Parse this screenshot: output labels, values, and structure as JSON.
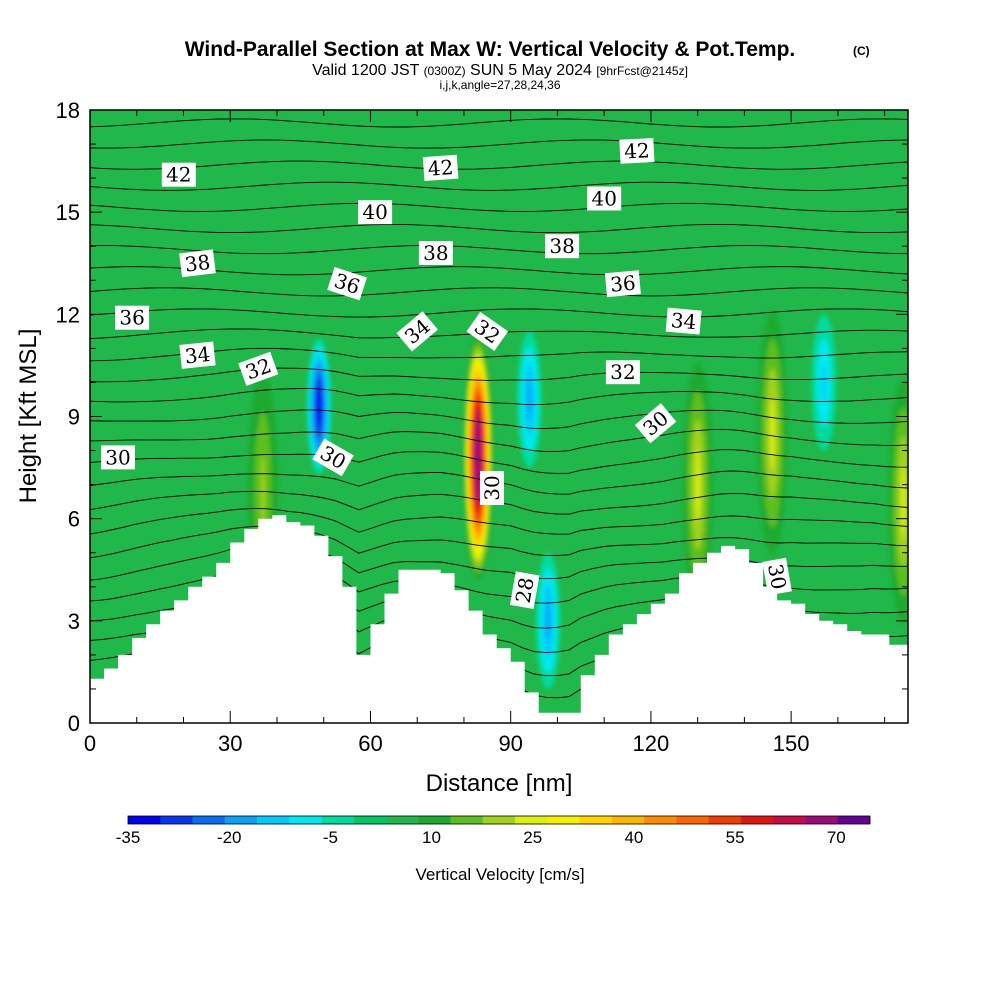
{
  "header": {
    "title": "Wind-Parallel Section at Max W: Vertical Velocity & Pot.Temp.",
    "title_tag": "(C)",
    "valid_prefix": "Valid 1200 JST",
    "valid_utc": "(0300Z)",
    "valid_date": "SUN 5 May 2024",
    "valid_fcst": "[9hrFcst@2145z]",
    "indices": "i,j,k,angle=27,28,24,36"
  },
  "chart_data": {
    "type": "heatmap",
    "title": "Wind-Parallel Section at Max W: Vertical Velocity & Pot.Temp.",
    "xlabel": "Distance [nm]",
    "ylabel": "Height [Kft MSL]",
    "xlim": [
      0,
      175
    ],
    "ylim": [
      0,
      18
    ],
    "x_ticks": [
      "0",
      "30",
      "60",
      "90",
      "120",
      "150"
    ],
    "x_tick_values": [
      0,
      30,
      60,
      90,
      120,
      150
    ],
    "y_ticks": [
      "0",
      "3",
      "6",
      "9",
      "12",
      "15",
      "18"
    ],
    "y_tick_values": [
      0,
      3,
      6,
      9,
      12,
      15,
      18
    ],
    "background_color": "#20b84a",
    "terrain_profile": {
      "x": [
        0,
        3,
        6,
        9,
        12,
        15,
        18,
        21,
        24,
        27,
        30,
        33,
        36,
        39,
        42,
        45,
        48,
        51,
        54,
        57,
        60,
        63,
        66,
        69,
        72,
        75,
        78,
        81,
        84,
        87,
        90,
        93,
        96,
        99,
        102,
        105,
        108,
        111,
        114,
        117,
        120,
        123,
        126,
        129,
        132,
        135,
        138,
        141,
        144,
        147,
        150,
        153,
        156,
        159,
        162,
        165,
        168,
        171,
        175
      ],
      "height": [
        1.3,
        1.6,
        2.0,
        2.5,
        2.9,
        3.3,
        3.6,
        4.0,
        4.3,
        4.7,
        5.3,
        5.7,
        6.0,
        6.1,
        5.9,
        5.8,
        5.5,
        4.9,
        4.0,
        2.0,
        2.9,
        3.8,
        4.5,
        4.5,
        4.5,
        4.4,
        3.9,
        3.3,
        2.6,
        2.2,
        1.8,
        0.9,
        0.3,
        0.3,
        0.3,
        1.4,
        2.0,
        2.6,
        2.9,
        3.2,
        3.5,
        3.8,
        4.4,
        4.7,
        5.0,
        5.2,
        5.1,
        4.7,
        4.0,
        3.6,
        3.5,
        3.2,
        3.0,
        2.9,
        2.7,
        2.6,
        2.6,
        2.3,
        2.3
      ]
    },
    "vertical_velocity_colorbar": {
      "title": "Vertical Velocity [cm/s]",
      "tick_labels": [
        "-35",
        "-20",
        "-5",
        "10",
        "25",
        "40",
        "55",
        "70"
      ],
      "tick_values": [
        -35,
        -20,
        -5,
        10,
        25,
        40,
        55,
        70
      ],
      "bins": [
        -35,
        -30,
        -25,
        -20,
        -15,
        -10,
        -5,
        0,
        5,
        10,
        15,
        20,
        25,
        30,
        35,
        40,
        45,
        50,
        55,
        60,
        65,
        70,
        75
      ],
      "colors": [
        "#0000ee",
        "#0a35ee",
        "#0a6cf2",
        "#0aa0f6",
        "#00cbfa",
        "#00e9f0",
        "#00dca0",
        "#00c864",
        "#1fb84a",
        "#1aab2e",
        "#5bbf1e",
        "#a0d21e",
        "#dcf00a",
        "#f5f000",
        "#ffd200",
        "#ffb400",
        "#ff8c00",
        "#ff6400",
        "#f03c00",
        "#e11414",
        "#c80a46",
        "#9b0a78",
        "#640096"
      ]
    },
    "vertical_velocity_features": [
      {
        "label": "updraft core",
        "x": 83,
        "height": 7.8,
        "w_max": 75
      },
      {
        "label": "updraft",
        "x": 130,
        "height": 7.0,
        "w_max": 25
      },
      {
        "label": "updraft",
        "x": 146,
        "height": 8.5,
        "w_max": 25
      },
      {
        "label": "updraft",
        "x": 174,
        "height": 6.5,
        "w_max": 25
      },
      {
        "label": "updraft",
        "x": 37,
        "height": 6.8,
        "w_max": 20
      },
      {
        "label": "downdraft",
        "x": 49,
        "height": 9.3,
        "w_max": -30
      },
      {
        "label": "downdraft",
        "x": 94,
        "height": 9.5,
        "w_max": -15
      },
      {
        "label": "downdraft",
        "x": 98,
        "height": 3.0,
        "w_max": -15
      },
      {
        "label": "downdraft",
        "x": 157,
        "height": 10.0,
        "w_max": -10
      }
    ],
    "potential_temperature": {
      "units": "C",
      "levels_labeled": [
        "28",
        "30",
        "32",
        "34",
        "36",
        "38",
        "40",
        "42"
      ],
      "contour_labels": [
        {
          "text": "42",
          "x": 19,
          "height": 16.1,
          "angle": 0
        },
        {
          "text": "42",
          "x": 75,
          "height": 16.3,
          "angle": -4
        },
        {
          "text": "42",
          "x": 117,
          "height": 16.8,
          "angle": -3
        },
        {
          "text": "40",
          "x": 61,
          "height": 15.0,
          "angle": 0
        },
        {
          "text": "40",
          "x": 110,
          "height": 15.4,
          "angle": 0
        },
        {
          "text": "38",
          "x": 23,
          "height": 13.5,
          "angle": -7
        },
        {
          "text": "38",
          "x": 74,
          "height": 13.8,
          "angle": 0
        },
        {
          "text": "38",
          "x": 101,
          "height": 14.0,
          "angle": 0
        },
        {
          "text": "36",
          "x": 9,
          "height": 11.9,
          "angle": 0
        },
        {
          "text": "36",
          "x": 55,
          "height": 12.9,
          "angle": 18
        },
        {
          "text": "36",
          "x": 114,
          "height": 12.9,
          "angle": -5
        },
        {
          "text": "34",
          "x": 23,
          "height": 10.8,
          "angle": -6
        },
        {
          "text": "34",
          "x": 70,
          "height": 11.5,
          "angle": -40
        },
        {
          "text": "34",
          "x": 127,
          "height": 11.8,
          "angle": 5
        },
        {
          "text": "32",
          "x": 36,
          "height": 10.4,
          "angle": -20
        },
        {
          "text": "32",
          "x": 85,
          "height": 11.5,
          "angle": 35
        },
        {
          "text": "32",
          "x": 114,
          "height": 10.3,
          "angle": 0
        },
        {
          "text": "30",
          "x": 6,
          "height": 7.8,
          "angle": 0
        },
        {
          "text": "30",
          "x": 52,
          "height": 7.8,
          "angle": 30
        },
        {
          "text": "30",
          "x": 86,
          "height": 6.9,
          "angle": -90
        },
        {
          "text": "30",
          "x": 121,
          "height": 8.8,
          "angle": -40
        },
        {
          "text": "30",
          "x": 147,
          "height": 4.3,
          "angle": 80
        },
        {
          "text": "28",
          "x": 93,
          "height": 3.9,
          "angle": -80
        }
      ]
    }
  }
}
